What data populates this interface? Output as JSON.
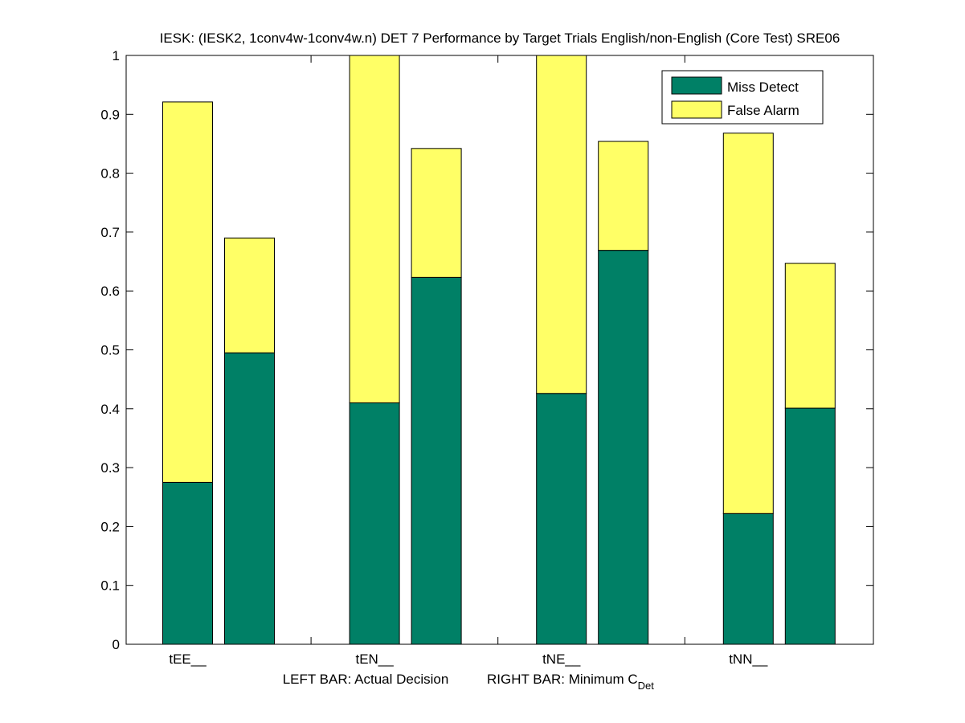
{
  "colors": {
    "miss": "#008066",
    "false_alarm": "#ffff66",
    "axis": "#000000",
    "background": "#ffffff"
  },
  "chart_data": {
    "type": "bar",
    "stacked": true,
    "title": "IESK: (IESK2, 1conv4w-1conv4w.n) DET 7 Performance by Target Trials English/non-English (Core Test) SRE06",
    "xlabel": {
      "left": "LEFT BAR: Actual Decision",
      "right_prefix": "RIGHT BAR: Minimum C",
      "right_subscript": "Det"
    },
    "ylabel": "",
    "ylim": [
      0,
      1
    ],
    "yticks": [
      "0",
      "0.1",
      "0.2",
      "0.3",
      "0.4",
      "0.5",
      "0.6",
      "0.7",
      "0.8",
      "0.9",
      "1"
    ],
    "categories": [
      "tEE__",
      "tEN__",
      "tNE__",
      "tNN__"
    ],
    "bars_per_category": [
      "Actual Decision",
      "Minimum C_Det"
    ],
    "series": [
      {
        "name": "Miss Detect",
        "values": [
          [
            0.275,
            0.495
          ],
          [
            0.41,
            0.623
          ],
          [
            0.426,
            0.669
          ],
          [
            0.222,
            0.401
          ]
        ]
      },
      {
        "name": "False Alarm",
        "values": [
          [
            0.646,
            0.195
          ],
          [
            0.59,
            0.219
          ],
          [
            0.574,
            0.185
          ],
          [
            0.646,
            0.246
          ]
        ]
      }
    ],
    "legend": {
      "position": "top-right",
      "entries": [
        "Miss Detect",
        "False Alarm"
      ]
    }
  }
}
